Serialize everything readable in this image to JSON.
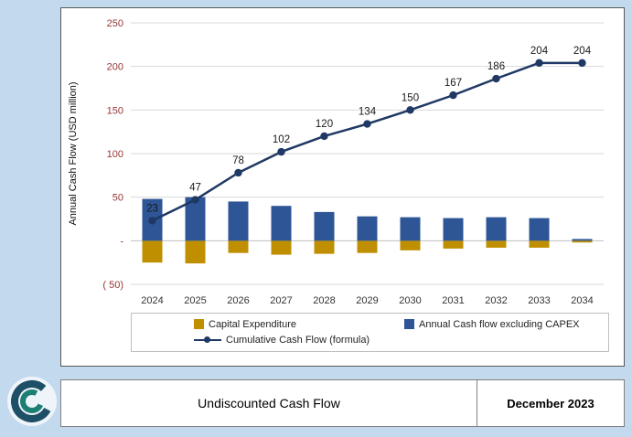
{
  "window": {
    "background": "#c3d9ee"
  },
  "footer": {
    "title": "Undiscounted Cash Flow",
    "date": "December 2023"
  },
  "chart_data": {
    "type": "combo",
    "title": "",
    "ylabel": "Annual Cash Flow (USD million)",
    "xlabel": "",
    "ylim": [
      -50,
      250
    ],
    "yticks": [
      {
        "v": 250,
        "label": "250"
      },
      {
        "v": 200,
        "label": "200"
      },
      {
        "v": 150,
        "label": "150"
      },
      {
        "v": 100,
        "label": "100"
      },
      {
        "v": 50,
        "label": "50"
      },
      {
        "v": 0,
        "label": "-"
      },
      {
        "v": -50,
        "label": "( 50)"
      }
    ],
    "categories": [
      "2024",
      "2025",
      "2026",
      "2027",
      "2028",
      "2029",
      "2030",
      "2031",
      "2032",
      "2033",
      "2034"
    ],
    "series": [
      {
        "name": "Capital Expenditure",
        "type": "bar",
        "color": "#BF8F00",
        "values": [
          -25,
          -26,
          -14,
          -16,
          -15,
          -14,
          -11,
          -9,
          -8,
          -8,
          -2
        ]
      },
      {
        "name": "Annual Cash flow excluding CAPEX",
        "type": "bar",
        "color": "#2E5596",
        "values": [
          48,
          50,
          45,
          40,
          33,
          28,
          27,
          26,
          27,
          26,
          2
        ]
      },
      {
        "name": "Cumulative Cash Flow (formula)",
        "type": "line",
        "color": "#1F3864",
        "marker": "circle",
        "data_labels": true,
        "values": [
          23,
          47,
          78,
          102,
          120,
          134,
          150,
          167,
          186,
          204,
          204
        ]
      }
    ],
    "gridline_color": "#d9d9d9",
    "zero_line_color": "#c0c0c0",
    "tick_label_color": "#943634",
    "category_label_color": "#333333",
    "data_label_color": "#1a1a1a",
    "legend_position": "bottom-boxed",
    "grid": true
  }
}
